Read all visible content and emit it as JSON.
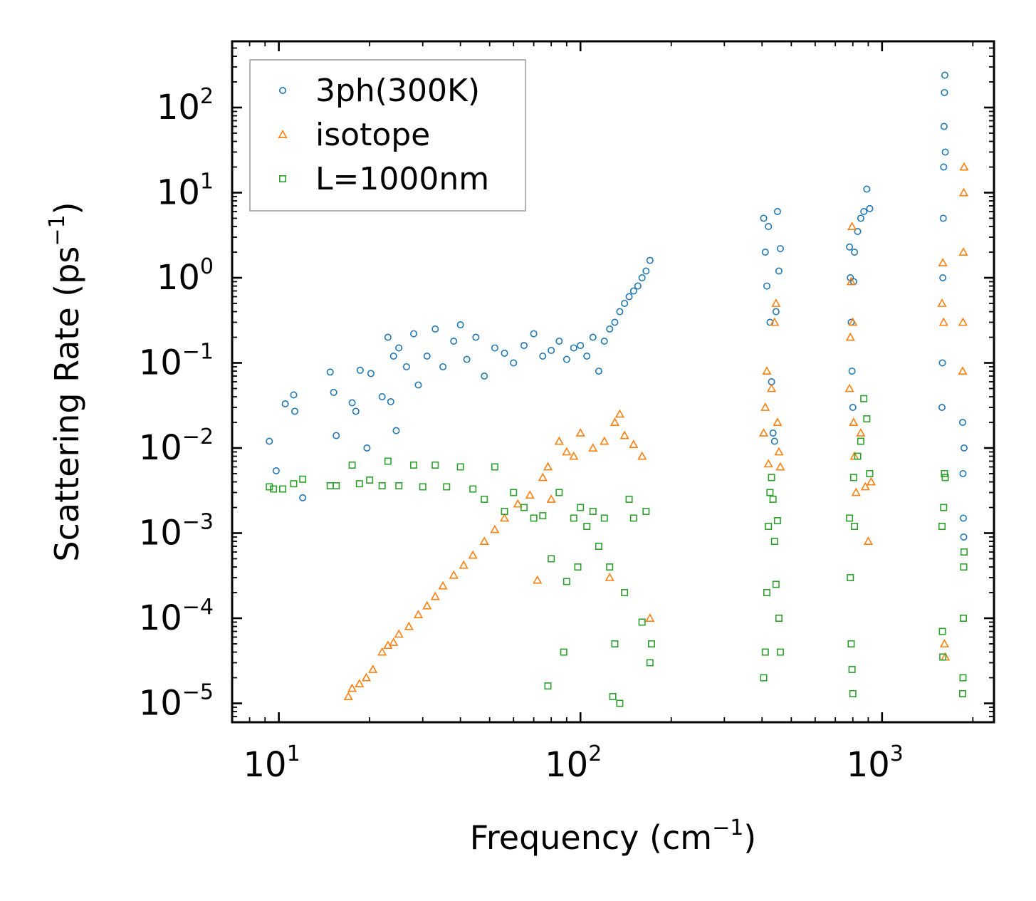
{
  "chart_data": {
    "type": "scatter",
    "title": "",
    "xlabel": "Frequency (cm",
    "xlabel_exp": "−1",
    "xlabel_close": ")",
    "ylabel": "Scattering Rate (ps",
    "ylabel_exp": "−1",
    "ylabel_close": ")",
    "xscale": "log",
    "yscale": "log",
    "xlim": [
      7.0,
      2350
    ],
    "ylim": [
      6e-06,
      600
    ],
    "legend_position": "top-left",
    "x_ticks": [
      {
        "value": 10,
        "base": "10",
        "exp": "1"
      },
      {
        "value": 100,
        "base": "10",
        "exp": "2"
      },
      {
        "value": 1000,
        "base": "10",
        "exp": "3"
      }
    ],
    "y_ticks": [
      {
        "value": 1e-05,
        "base": "10",
        "exp": "−5"
      },
      {
        "value": 0.0001,
        "base": "10",
        "exp": "−4"
      },
      {
        "value": 0.001,
        "base": "10",
        "exp": "−3"
      },
      {
        "value": 0.01,
        "base": "10",
        "exp": "−2"
      },
      {
        "value": 0.1,
        "base": "10",
        "exp": "−1"
      },
      {
        "value": 1,
        "base": "10",
        "exp": "0"
      },
      {
        "value": 10,
        "base": "10",
        "exp": "1"
      },
      {
        "value": 100,
        "base": "10",
        "exp": "2"
      }
    ],
    "series": [
      {
        "name": "3ph(300K)",
        "marker": "circle",
        "color": "#1f77b4",
        "x": [
          9.3,
          9.8,
          10.5,
          11.2,
          11.3,
          12.0,
          14.8,
          15.2,
          15.5,
          17.5,
          18.0,
          18.6,
          19.6,
          20.2,
          22.0,
          23.0,
          23.5,
          24.0,
          24.5,
          25.0,
          26.5,
          28.0,
          29.0,
          31.0,
          33.0,
          35.0,
          38.0,
          40.0,
          42.0,
          45.0,
          48.0,
          52.0,
          56.0,
          60.0,
          65.0,
          70.0,
          75.0,
          80.0,
          85.0,
          90.0,
          95.0,
          100.0,
          105.0,
          110.0,
          115.0,
          120.0,
          125.0,
          130.0,
          135.0,
          140.0,
          145.0,
          150.0,
          155.0,
          160.0,
          165.0,
          170.0,
          405.0,
          410.0,
          415.0,
          420.0,
          425.0,
          430.0,
          435.0,
          440.0,
          445.0,
          450.0,
          455.0,
          460.0,
          780.0,
          785.0,
          790.0,
          795.0,
          800.0,
          805.0,
          810.0,
          830.0,
          850.0,
          870.0,
          890.0,
          910.0,
          1580.0,
          1585.0,
          1590.0,
          1595.0,
          1600.0,
          1605.0,
          1610.0,
          1615.0,
          1620.0,
          1850.0,
          1855.0,
          1860.0,
          1865.0,
          1870.0
        ],
        "y": [
          0.012,
          0.0054,
          0.033,
          0.042,
          0.027,
          0.0026,
          0.078,
          0.045,
          0.014,
          0.034,
          0.027,
          0.082,
          0.01,
          0.075,
          0.04,
          0.2,
          0.035,
          0.12,
          0.016,
          0.15,
          0.09,
          0.22,
          0.055,
          0.12,
          0.25,
          0.09,
          0.18,
          0.28,
          0.11,
          0.2,
          0.07,
          0.15,
          0.13,
          0.1,
          0.16,
          0.22,
          0.12,
          0.14,
          0.18,
          0.11,
          0.15,
          0.16,
          0.12,
          0.2,
          0.08,
          0.18,
          0.25,
          0.3,
          0.4,
          0.5,
          0.6,
          0.7,
          0.8,
          1.0,
          1.2,
          1.6,
          5.0,
          2.0,
          0.8,
          4.0,
          0.3,
          0.06,
          0.015,
          0.012,
          0.4,
          6.0,
          1.2,
          2.2,
          2.3,
          1.0,
          0.3,
          0.08,
          0.03,
          0.9,
          2.0,
          3.5,
          5.0,
          6.0,
          11.0,
          6.5,
          0.03,
          0.1,
          1.0,
          5.0,
          20.0,
          60.0,
          150.0,
          240.0,
          30.0,
          0.02,
          0.005,
          0.0015,
          0.0009,
          0.01
        ]
      },
      {
        "name": "isotope",
        "marker": "triangle",
        "color": "#ff7f0e",
        "x": [
          17.0,
          17.5,
          18.5,
          19.5,
          20.5,
          22.0,
          23.0,
          24.0,
          25.0,
          27.0,
          29.0,
          31.0,
          33.0,
          35.0,
          38.0,
          41.0,
          44.0,
          48.0,
          52.0,
          56.0,
          62.0,
          68.0,
          72.0,
          75.0,
          78.0,
          80.0,
          85.0,
          90.0,
          95.0,
          100.0,
          110.0,
          120.0,
          125.0,
          130.0,
          135.0,
          140.0,
          150.0,
          160.0,
          170.0,
          405.0,
          410.0,
          415.0,
          420.0,
          430.0,
          440.0,
          445.0,
          450.0,
          455.0,
          460.0,
          780.0,
          785.0,
          790.0,
          795.0,
          800.0,
          805.0,
          810.0,
          820.0,
          850.0,
          880.0,
          900.0,
          920.0,
          1580.0,
          1590.0,
          1600.0,
          1610.0,
          1620.0,
          1850.0,
          1855.0,
          1860.0,
          1865.0,
          1870.0
        ],
        "y": [
          1.2e-05,
          1.5e-05,
          1.7e-05,
          2e-05,
          2.5e-05,
          4e-05,
          4.8e-05,
          5.2e-05,
          6.5e-05,
          8e-05,
          0.00011,
          0.00014,
          0.00018,
          0.00024,
          0.00032,
          0.00042,
          0.00055,
          0.0008,
          0.0011,
          0.0015,
          0.0022,
          0.0028,
          0.00028,
          0.0045,
          0.006,
          0.0025,
          0.012,
          0.009,
          0.008,
          0.015,
          0.01,
          0.012,
          0.0003,
          0.02,
          0.025,
          0.014,
          0.011,
          0.008,
          0.0001,
          0.015,
          0.03,
          0.08,
          0.0065,
          0.05,
          0.3,
          0.5,
          0.02,
          0.009,
          0.006,
          0.05,
          0.2,
          0.9,
          4.0,
          0.3,
          0.02,
          0.008,
          0.003,
          0.015,
          0.0035,
          0.0008,
          0.004,
          0.5,
          1.5,
          0.3,
          5e-05,
          3.5e-05,
          0.08,
          0.3,
          2.0,
          10.0,
          20.0
        ]
      },
      {
        "name": "L=1000nm",
        "marker": "square",
        "color": "#2ca02c",
        "x": [
          9.3,
          9.6,
          10.3,
          11.2,
          12.0,
          14.8,
          15.5,
          17.5,
          18.5,
          20.0,
          22.0,
          23.0,
          25.0,
          28.0,
          30.0,
          33.0,
          36.0,
          40.0,
          44.0,
          48.0,
          52.0,
          56.0,
          60.0,
          65.0,
          70.0,
          75.0,
          78.0,
          80.0,
          85.0,
          88.0,
          90.0,
          95.0,
          98.0,
          100.0,
          105.0,
          110.0,
          115.0,
          120.0,
          125.0,
          128.0,
          130.0,
          135.0,
          140.0,
          145.0,
          150.0,
          160.0,
          165.0,
          170.0,
          172.0,
          405.0,
          410.0,
          415.0,
          420.0,
          425.0,
          430.0,
          435.0,
          440.0,
          445.0,
          450.0,
          455.0,
          460.0,
          780.0,
          785.0,
          790.0,
          795.0,
          800.0,
          805.0,
          810.0,
          830.0,
          850.0,
          870.0,
          890.0,
          910.0,
          1580.0,
          1585.0,
          1590.0,
          1600.0,
          1610.0,
          1620.0,
          1850.0,
          1855.0,
          1860.0,
          1865.0,
          1870.0
        ],
        "y": [
          0.0035,
          0.0033,
          0.0033,
          0.0038,
          0.0043,
          0.0036,
          0.0036,
          0.0063,
          0.0038,
          0.0042,
          0.0036,
          0.007,
          0.0036,
          0.0063,
          0.0035,
          0.0063,
          0.0035,
          0.006,
          0.0033,
          0.0025,
          0.006,
          0.0018,
          0.003,
          0.002,
          0.0015,
          0.0016,
          1.6e-05,
          0.0005,
          0.003,
          4e-05,
          0.00027,
          0.0015,
          0.0004,
          0.002,
          0.0012,
          0.0018,
          0.0007,
          0.0015,
          0.0004,
          1.2e-05,
          5e-05,
          1e-05,
          0.0002,
          0.0025,
          0.0015,
          9e-05,
          0.0018,
          3e-05,
          5e-05,
          2e-05,
          4e-05,
          0.0002,
          0.0012,
          0.003,
          0.0045,
          0.0025,
          0.0008,
          0.00025,
          0.0014,
          0.0001,
          4e-05,
          0.0015,
          0.0003,
          5e-05,
          2.5e-05,
          1.3e-05,
          0.0045,
          0.0012,
          0.008,
          0.012,
          0.038,
          0.022,
          0.005,
          0.0012,
          7e-05,
          3.5e-05,
          0.002,
          0.005,
          0.0045,
          1.3e-05,
          2e-05,
          0.0001,
          0.0004,
          0.0006
        ]
      }
    ]
  }
}
